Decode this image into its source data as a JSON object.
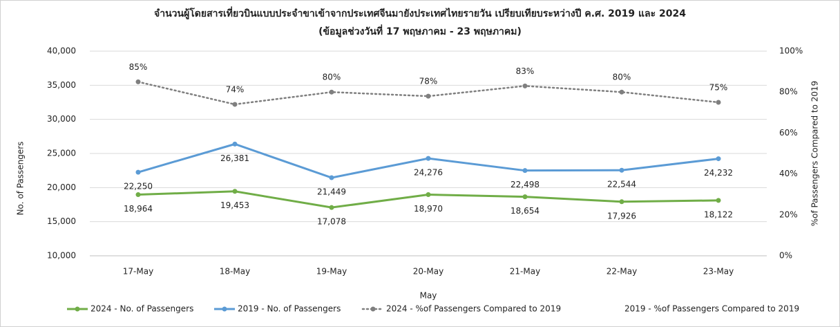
{
  "chart_data": {
    "type": "line",
    "title": "จำนวนผู้โดยสารเที่ยวบินแบบประจำขาเข้าจากประเทศจีนมายังประเทศไทยรายวัน เปรียบเทียบระหว่างปี ค.ศ. 2019 และ 2024",
    "subtitle": "(ข้อมูลช่วงวันที่ 17 พฤษภาคม - 23 พฤษภาคม)",
    "x_label": "May",
    "y_label": "No. of Passengers",
    "y2_label": "%of Passengers Compared to 2019",
    "categories": [
      "17-May",
      "18-May",
      "19-May",
      "20-May",
      "21-May",
      "22-May",
      "23-May"
    ],
    "ylim": [
      10000,
      40000
    ],
    "yticks": [
      {
        "value": 10000,
        "label": "10,000"
      },
      {
        "value": 15000,
        "label": "15,000"
      },
      {
        "value": 20000,
        "label": "20,000"
      },
      {
        "value": 25000,
        "label": "25,000"
      },
      {
        "value": 30000,
        "label": "30,000"
      },
      {
        "value": 35000,
        "label": "35,000"
      },
      {
        "value": 40000,
        "label": "40,000"
      }
    ],
    "y2lim": [
      0,
      100
    ],
    "y2ticks": [
      {
        "value": 0,
        "label": "0%"
      },
      {
        "value": 20,
        "label": "20%"
      },
      {
        "value": 40,
        "label": "40%"
      },
      {
        "value": 60,
        "label": "60%"
      },
      {
        "value": 80,
        "label": "80%"
      },
      {
        "value": 100,
        "label": "100%"
      }
    ],
    "grid": true,
    "legend": "bottom",
    "series": [
      {
        "name": "2024 - No. of Passengers",
        "color": "#70ad47",
        "style": "solid",
        "label_position": "below",
        "values": [
          18964,
          19453,
          17078,
          18970,
          18654,
          17926,
          18122
        ],
        "value_labels": [
          "18,964",
          "19,453",
          "17,078",
          "18,970",
          "18,654",
          "17,926",
          "18,122"
        ]
      },
      {
        "name": "2019 - No. of Passengers",
        "color": "#5b9bd5",
        "style": "solid",
        "label_position": "below",
        "values": [
          22250,
          26381,
          21449,
          24276,
          22498,
          22544,
          24232
        ],
        "value_labels": [
          "22,250",
          "26,381",
          "21,449",
          "24,276",
          "22,498",
          "22,544",
          "24,232"
        ]
      },
      {
        "name": "2024 - %of Passengers Compared to 2019",
        "color": "#7f7f7f",
        "style": "dotted",
        "axis": "y2",
        "label_position": "above",
        "values": [
          85,
          74,
          80,
          78,
          83,
          80,
          75
        ],
        "value_labels": [
          "85%",
          "74%",
          "80%",
          "78%",
          "83%",
          "80%",
          "75%"
        ]
      },
      {
        "name": "2019 - %of Passengers Compared to 2019",
        "color": "none",
        "style": "none",
        "axis": "y2",
        "values": [
          null,
          null,
          null,
          null,
          null,
          null,
          null
        ]
      }
    ]
  }
}
